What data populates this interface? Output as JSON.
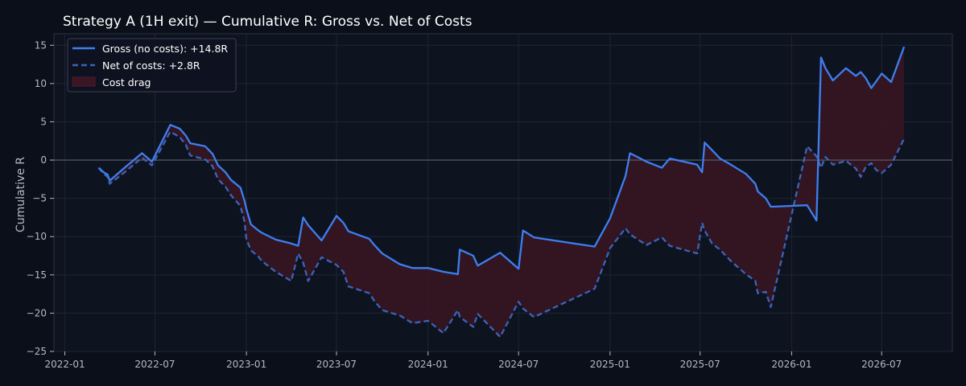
{
  "chart_data": {
    "type": "line",
    "title": "Strategy A (1H exit) — Cumulative R: Gross vs. Net of Costs",
    "xlabel": "",
    "ylabel": "Cumulative R",
    "ylim": [
      -25,
      16.5
    ],
    "xlim": [
      "2021-12-10",
      "2026-11-20"
    ],
    "x_ticks": [
      "2022-01",
      "2022-07",
      "2023-01",
      "2023-07",
      "2024-01",
      "2024-07",
      "2025-01",
      "2025-07",
      "2026-01",
      "2026-07"
    ],
    "y_ticks": [
      -25,
      -20,
      -15,
      -10,
      -5,
      0,
      5,
      10,
      15
    ],
    "grid": true,
    "legend_position": "top-left",
    "colors": {
      "background": "#0b0f19",
      "plot_background": "#0e1320",
      "grid": "#1f2533",
      "gross_line": "#3d7ff0",
      "net_line": "#3a64b8",
      "cost_fill": "#3a1522",
      "zero_line": "#5a6272"
    },
    "x": [
      "2022-03-10",
      "2022-03-20",
      "2022-03-28",
      "2022-04-01",
      "2022-05-01",
      "2022-06-05",
      "2022-06-25",
      "2022-08-01",
      "2022-08-20",
      "2022-09-01",
      "2022-09-10",
      "2022-10-10",
      "2022-10-25",
      "2022-11-05",
      "2022-11-20",
      "2022-12-01",
      "2022-12-20",
      "2022-12-28",
      "2023-01-01",
      "2023-01-10",
      "2023-01-25",
      "2023-02-01",
      "2023-03-01",
      "2023-04-01",
      "2023-04-15",
      "2023-04-25",
      "2023-05-05",
      "2023-06-01",
      "2023-07-01",
      "2023-07-15",
      "2023-07-25",
      "2023-09-05",
      "2023-09-15",
      "2023-10-01",
      "2023-11-05",
      "2023-12-01",
      "2024-01-01",
      "2024-02-01",
      "2024-03-01",
      "2024-03-05",
      "2024-04-01",
      "2024-04-10",
      "2024-05-25",
      "2024-07-01",
      "2024-07-10",
      "2024-08-01",
      "2024-12-01",
      "2025-01-01",
      "2025-02-01",
      "2025-02-10",
      "2025-03-15",
      "2025-04-15",
      "2025-05-01",
      "2025-06-25",
      "2025-07-05",
      "2025-07-10",
      "2025-07-25",
      "2025-08-10",
      "2025-09-01",
      "2025-10-01",
      "2025-10-20",
      "2025-10-25",
      "2025-11-10",
      "2025-11-20",
      "2026-02-01",
      "2026-02-20",
      "2026-03-01",
      "2026-03-10",
      "2026-03-25",
      "2026-04-20",
      "2026-05-10",
      "2026-05-20",
      "2026-05-30",
      "2026-06-10",
      "2026-06-20",
      "2026-07-01",
      "2026-07-20",
      "2026-08-15"
    ],
    "series": [
      {
        "name": "Gross (no costs): +14.8R",
        "style": "solid",
        "values": [
          -1.0,
          -1.6,
          -1.9,
          -2.7,
          -1.0,
          0.9,
          -0.2,
          4.6,
          4.1,
          3.2,
          2.2,
          1.8,
          0.8,
          -0.7,
          -1.6,
          -2.6,
          -3.6,
          -5.3,
          -6.4,
          -8.4,
          -9.2,
          -9.5,
          -10.4,
          -10.9,
          -11.2,
          -7.5,
          -8.5,
          -10.5,
          -7.3,
          -8.2,
          -9.3,
          -10.3,
          -11.1,
          -12.2,
          -13.6,
          -14.1,
          -14.1,
          -14.6,
          -14.9,
          -11.7,
          -12.5,
          -13.8,
          -12.1,
          -14.2,
          -9.2,
          -10.1,
          -11.3,
          -7.6,
          -2.1,
          0.9,
          -0.2,
          -1.0,
          0.2,
          -0.6,
          -1.6,
          2.3,
          1.3,
          0.2,
          -0.6,
          -1.8,
          -3.1,
          -4.1,
          -5.0,
          -6.1,
          -5.9,
          -7.9,
          13.4,
          12.0,
          10.4,
          12.0,
          11.0,
          11.5,
          10.7,
          9.4,
          10.3,
          11.3,
          10.2,
          14.8
        ]
      },
      {
        "name": "Net of costs: +2.8R",
        "style": "dashed",
        "values": [
          -1.0,
          -1.8,
          -2.2,
          -3.1,
          -1.6,
          0.3,
          -0.7,
          3.7,
          3.0,
          2.0,
          0.6,
          0.1,
          -0.8,
          -2.5,
          -3.5,
          -4.6,
          -6.0,
          -8.0,
          -10.3,
          -11.8,
          -12.6,
          -13.2,
          -14.6,
          -15.8,
          -12.2,
          -13.4,
          -15.8,
          -12.7,
          -13.7,
          -14.6,
          -16.5,
          -17.4,
          -18.4,
          -19.6,
          -20.3,
          -21.3,
          -21.0,
          -22.6,
          -19.6,
          -20.5,
          -21.8,
          -20.1,
          -23.1,
          -18.5,
          -19.4,
          -20.5,
          -16.8,
          -11.5,
          -8.9,
          -9.7,
          -11.1,
          -10.1,
          -11.2,
          -12.2,
          -8.2,
          -9.2,
          -10.9,
          -11.7,
          -13.2,
          -14.9,
          -15.8,
          -17.4,
          -17.2,
          -19.2,
          1.8,
          0.5,
          -1.0,
          0.4,
          -0.6,
          -0.1,
          -1.1,
          -2.2,
          -0.9,
          -0.4,
          -1.3,
          -1.7,
          -0.6,
          2.8
        ]
      }
    ],
    "cost_fill_name": "Cost drag"
  }
}
